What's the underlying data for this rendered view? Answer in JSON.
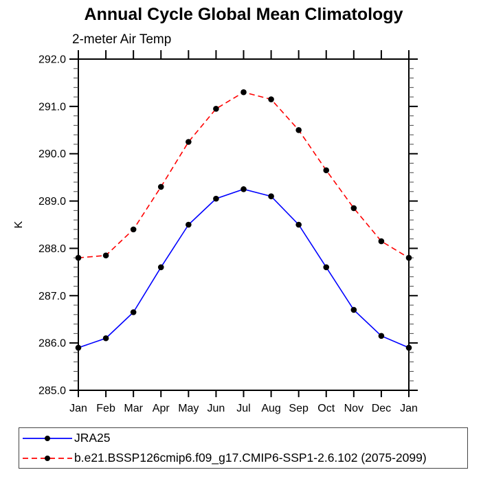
{
  "chart_data": {
    "type": "line",
    "title": "Annual Cycle Global Mean Climatology",
    "left_label": "2-meter Air Temp",
    "ylabel": "K",
    "categories": [
      "Jan",
      "Feb",
      "Mar",
      "Apr",
      "May",
      "Jun",
      "Jul",
      "Aug",
      "Sep",
      "Oct",
      "Nov",
      "Dec",
      "Jan"
    ],
    "series": [
      {
        "name": "JRA25",
        "color": "#0000ff",
        "line_style": "solid",
        "marker": "filled-circle",
        "marker_color": "#000000",
        "values": [
          285.9,
          286.1,
          286.65,
          287.6,
          288.5,
          289.05,
          289.25,
          289.1,
          288.5,
          287.6,
          286.7,
          286.15,
          285.9
        ]
      },
      {
        "name": "b.e21.BSSP126cmip6.f09_g17.CMIP6-SSP1-2.6.102 (2075-2099)",
        "color": "#ff0000",
        "line_style": "dashed",
        "marker": "filled-circle",
        "marker_color": "#000000",
        "values": [
          287.8,
          287.85,
          288.4,
          289.3,
          290.25,
          290.95,
          291.3,
          291.15,
          290.5,
          289.65,
          288.85,
          288.15,
          287.8
        ]
      }
    ],
    "ylim": [
      285,
      292
    ],
    "ytick_step": 1.0,
    "ytick_minor_step": 0.2,
    "ytick_label_decimals": 1,
    "grid": false,
    "legend_position": "bottom-left-box",
    "axis_color": "#000000"
  }
}
